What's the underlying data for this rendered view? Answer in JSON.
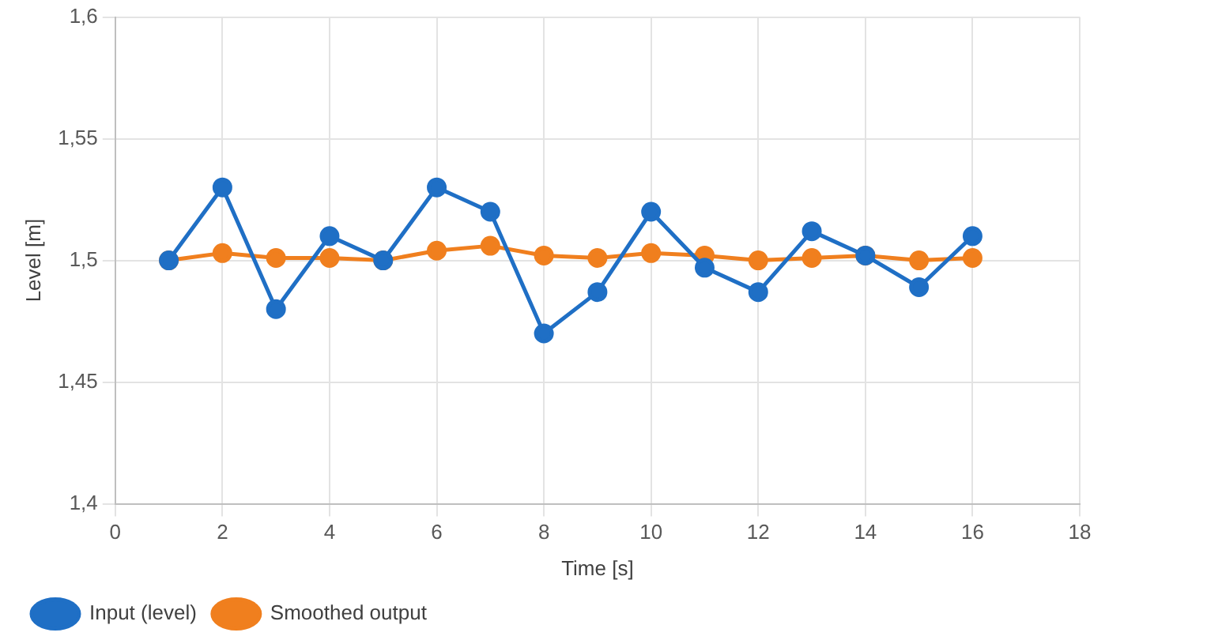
{
  "chart_data": {
    "type": "line",
    "xlabel": "Time [s]",
    "ylabel": "Level [m]",
    "x": [
      1,
      2,
      3,
      4,
      5,
      6,
      7,
      8,
      9,
      10,
      11,
      12,
      13,
      14,
      15,
      16
    ],
    "series": [
      {
        "name": "Input (level)",
        "color": "#1f6fc5",
        "values": [
          1.5,
          1.53,
          1.48,
          1.51,
          1.5,
          1.53,
          1.52,
          1.47,
          1.487,
          1.52,
          1.497,
          1.487,
          1.512,
          1.502,
          1.489,
          1.51
        ]
      },
      {
        "name": "Smoothed output",
        "color": "#f07f1e",
        "values": [
          1.5,
          1.503,
          1.501,
          1.501,
          1.5,
          1.504,
          1.506,
          1.502,
          1.501,
          1.503,
          1.502,
          1.5,
          1.501,
          1.502,
          1.5,
          1.501
        ]
      }
    ],
    "xlim": [
      0,
      18
    ],
    "xticks": [
      0,
      2,
      4,
      6,
      8,
      10,
      12,
      14,
      16,
      18
    ],
    "ylim": [
      1.4,
      1.6
    ],
    "yticks": [
      {
        "value": 1.4,
        "label": "1,4"
      },
      {
        "value": 1.45,
        "label": "1,45"
      },
      {
        "value": 1.5,
        "label": "1,5"
      },
      {
        "value": 1.55,
        "label": "1,55"
      },
      {
        "value": 1.6,
        "label": "1,6"
      }
    ],
    "grid": true,
    "legend": "bottom left",
    "marker": "circle",
    "line_style": "solid"
  }
}
